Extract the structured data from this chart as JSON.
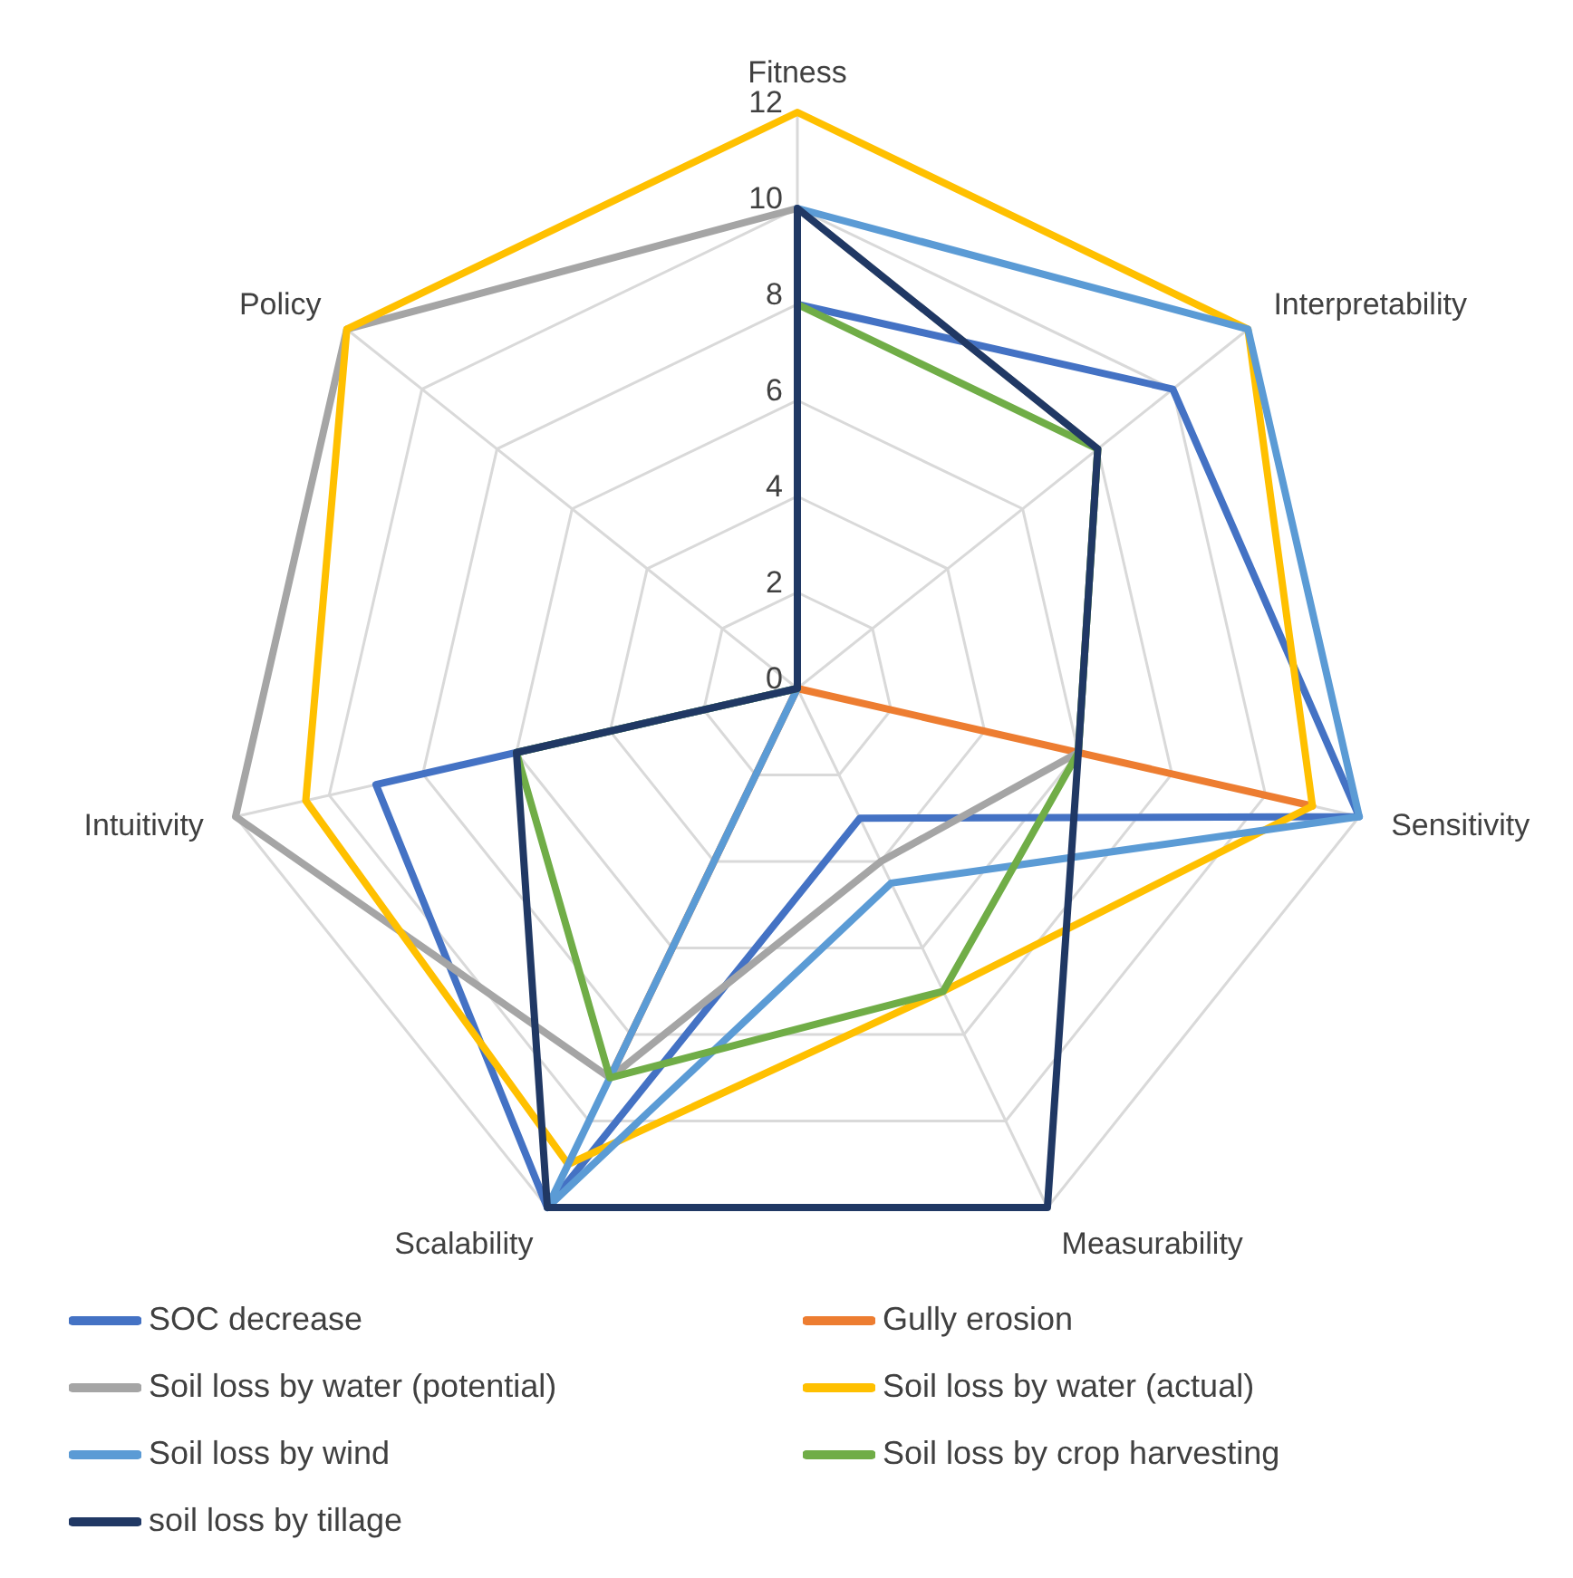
{
  "chart_data": {
    "type": "radar",
    "categories": [
      "Fitness",
      "Interpretability",
      "Sensitivity",
      "Measurability",
      "Scalability",
      "Intuitivity",
      "Policy"
    ],
    "ylim": [
      0,
      12
    ],
    "yticks": [
      0,
      2,
      4,
      6,
      8,
      10,
      12
    ],
    "grid": true,
    "legend": "bottom",
    "marker": "none",
    "series": [
      {
        "name": "SOC decrease",
        "color": "#4472c4",
        "values": [
          8,
          10,
          12,
          3,
          12,
          9,
          0
        ]
      },
      {
        "name": "Gully erosion",
        "color": "#ed7d31",
        "values": [
          0,
          0,
          11,
          0,
          9,
          0,
          0
        ]
      },
      {
        "name": "Soil loss by water (potential)",
        "color": "#a5a5a5",
        "values": [
          10,
          8,
          6,
          4,
          9,
          12,
          12
        ]
      },
      {
        "name": "Soil loss by water (actual)",
        "color": "#ffc000",
        "values": [
          12,
          12,
          11,
          7,
          11,
          10.5,
          12
        ]
      },
      {
        "name": "Soil loss by wind",
        "color": "#5b9bd5",
        "values": [
          10,
          12,
          12,
          4.5,
          12,
          0,
          0
        ]
      },
      {
        "name": "Soil loss by crop harvesting",
        "color": "#70ad47",
        "values": [
          8,
          8,
          6,
          7,
          9,
          6,
          0
        ]
      },
      {
        "name": "soil loss by tillage",
        "color": "#203864",
        "values": [
          10,
          8,
          6,
          12,
          12,
          6,
          0
        ]
      }
    ]
  }
}
